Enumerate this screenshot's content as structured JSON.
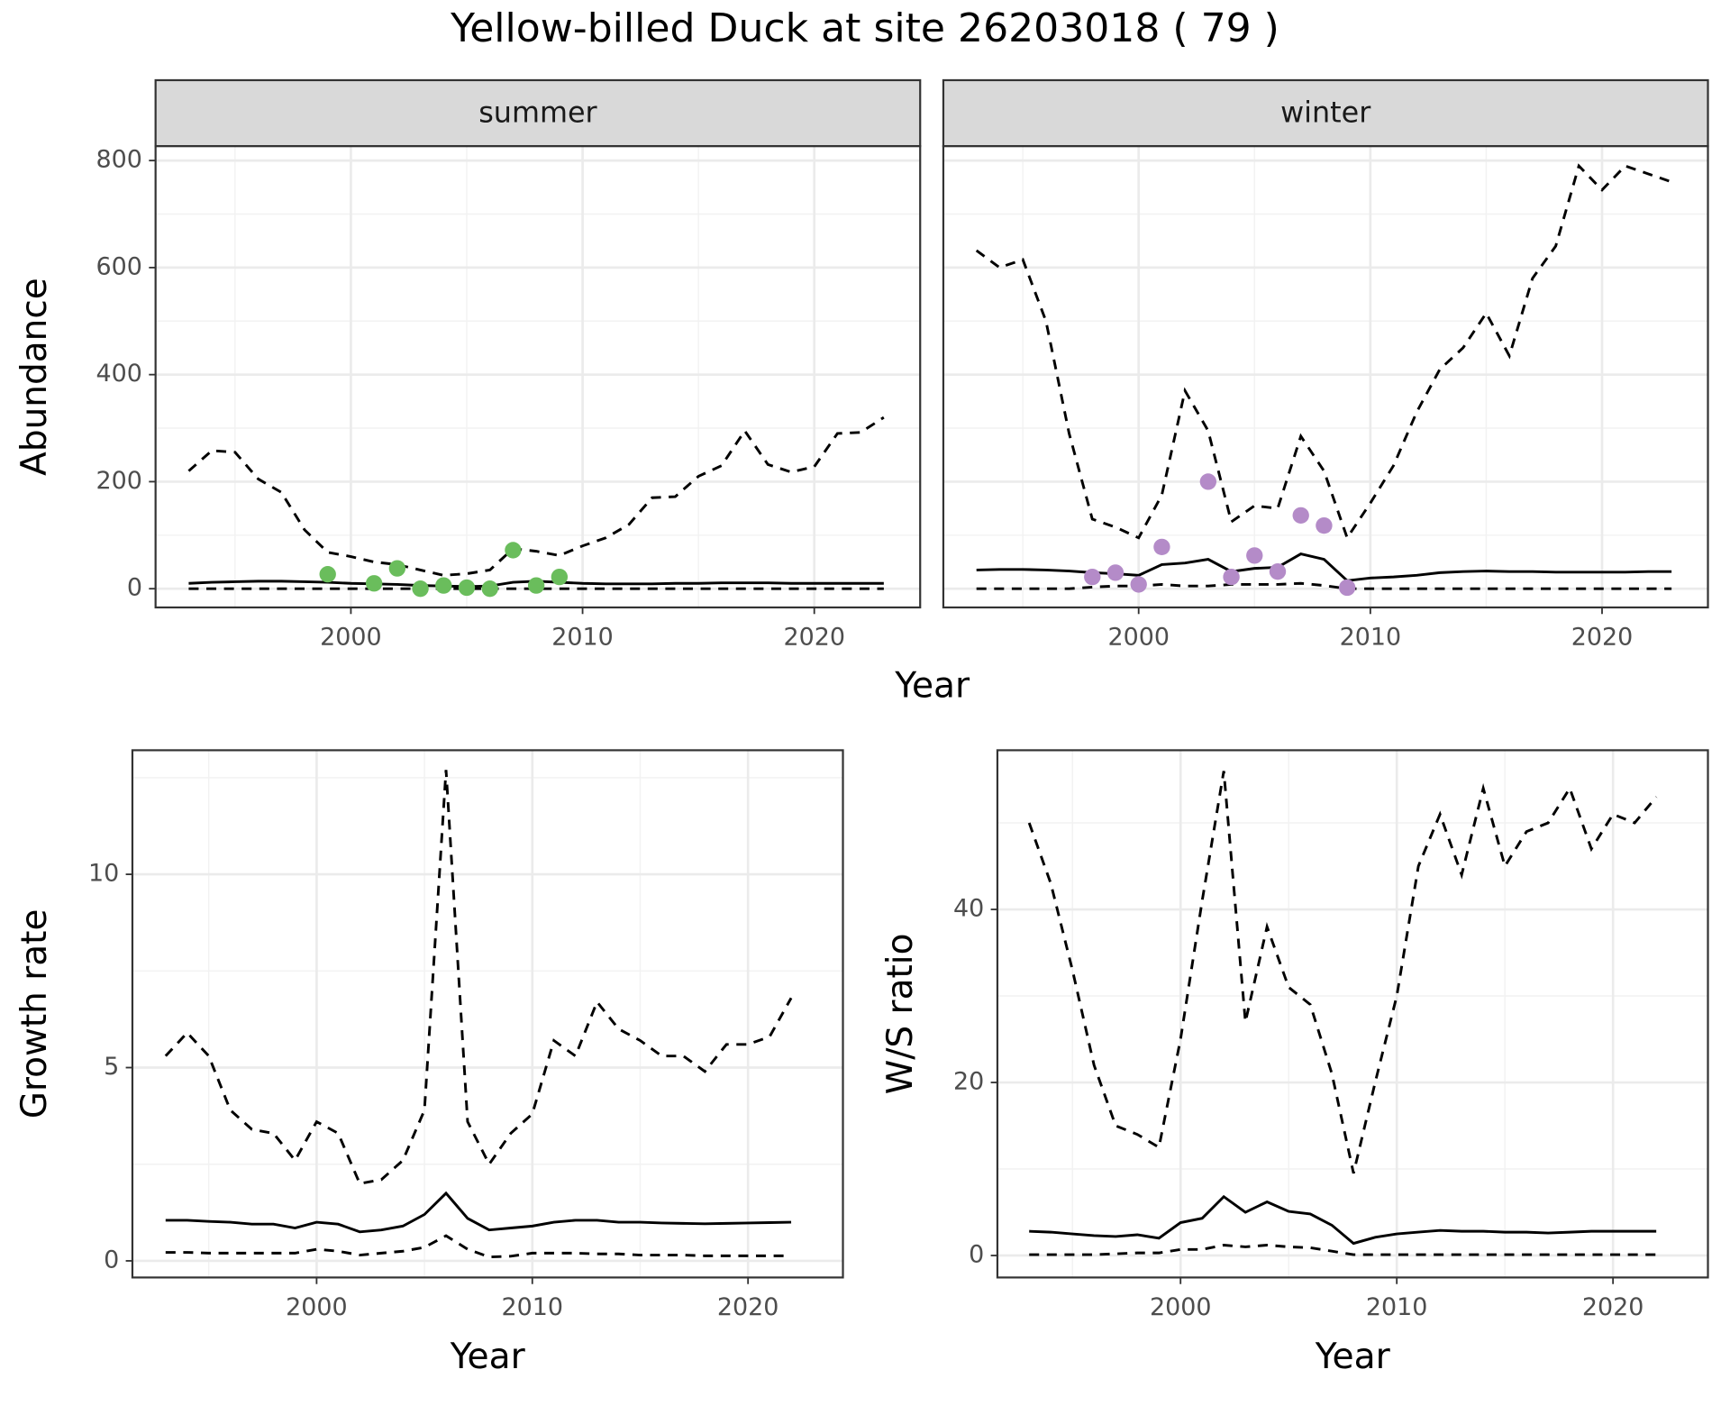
{
  "title": "Yellow-billed Duck at site 26203018 ( 79 )",
  "chart_data": [
    {
      "type": "line",
      "strip": "summer",
      "xlabel": "Year",
      "ylabel": "Abundance",
      "xlim": [
        1991.57,
        2024.57
      ],
      "ylim": [
        -35,
        827
      ],
      "xticks": [
        2000,
        2010,
        2020
      ],
      "yticks": [
        0,
        200,
        400,
        600,
        800
      ],
      "y_tick_labels": true,
      "grid": true,
      "x": [
        1993,
        1994,
        1995,
        1996,
        1997,
        1998,
        1999,
        2000,
        2001,
        2002,
        2003,
        2004,
        2005,
        2006,
        2007,
        2008,
        2009,
        2010,
        2011,
        2012,
        2013,
        2014,
        2015,
        2016,
        2017,
        2018,
        2019,
        2020,
        2021,
        2022,
        2023
      ],
      "series": [
        {
          "color": "#000000",
          "dash": true,
          "values": [
            220,
            258,
            255,
            205,
            180,
            110,
            68,
            60,
            50,
            45,
            35,
            25,
            28,
            35,
            75,
            70,
            62,
            80,
            95,
            120,
            170,
            172,
            210,
            230,
            295,
            232,
            218,
            228,
            290,
            292,
            320
          ]
        },
        {
          "color": "#000000",
          "dash": false,
          "values": [
            10,
            12,
            13,
            14,
            14,
            13,
            12,
            10,
            9,
            8,
            6,
            5,
            4,
            5,
            12,
            14,
            12,
            10,
            9,
            9,
            9,
            10,
            10,
            11,
            11,
            11,
            10,
            10,
            10,
            10,
            10
          ]
        },
        {
          "color": "#000000",
          "dash": true,
          "values": [
            0,
            0,
            0,
            0,
            0,
            0,
            0,
            0,
            0,
            0,
            0,
            0,
            0,
            0,
            0,
            0,
            0,
            0,
            0,
            0,
            0,
            0,
            0,
            0,
            0,
            0,
            0,
            0,
            0,
            0,
            0
          ]
        }
      ],
      "points": {
        "type": "scatter",
        "color": "#6abd5c",
        "x": [
          1999,
          2001,
          2002,
          2003,
          2004,
          2005,
          2006,
          2007,
          2008,
          2009
        ],
        "values": [
          27,
          10,
          38,
          0,
          6,
          2,
          0,
          72,
          6,
          22
        ]
      }
    },
    {
      "type": "line",
      "strip": "winter",
      "xlim": [
        1991.57,
        2024.57
      ],
      "ylim": [
        -35,
        827
      ],
      "xticks": [
        2000,
        2010,
        2020
      ],
      "yticks": [
        0,
        200,
        400,
        600,
        800
      ],
      "y_tick_labels": false,
      "grid": true,
      "x": [
        1993,
        1994,
        1995,
        1996,
        1997,
        1998,
        1999,
        2000,
        2001,
        2002,
        2003,
        2004,
        2005,
        2006,
        2007,
        2008,
        2009,
        2010,
        2011,
        2012,
        2013,
        2014,
        2015,
        2016,
        2017,
        2018,
        2019,
        2020,
        2021,
        2022,
        2023
      ],
      "series": [
        {
          "color": "#000000",
          "dash": true,
          "values": [
            632,
            600,
            615,
            500,
            290,
            130,
            115,
            95,
            175,
            370,
            295,
            125,
            155,
            150,
            285,
            220,
            95,
            160,
            230,
            330,
            410,
            450,
            515,
            435,
            580,
            640,
            790,
            745,
            790,
            775,
            760
          ]
        },
        {
          "color": "#000000",
          "dash": false,
          "values": [
            35,
            36,
            36,
            35,
            33,
            30,
            28,
            25,
            45,
            48,
            55,
            32,
            38,
            40,
            65,
            55,
            15,
            20,
            22,
            25,
            30,
            32,
            33,
            32,
            32,
            31,
            31,
            31,
            31,
            32,
            32
          ]
        },
        {
          "color": "#000000",
          "dash": true,
          "values": [
            0,
            0,
            0,
            0,
            0,
            3,
            5,
            5,
            8,
            5,
            5,
            8,
            8,
            8,
            10,
            6,
            0,
            0,
            0,
            0,
            0,
            0,
            0,
            0,
            0,
            0,
            0,
            0,
            0,
            0,
            0
          ]
        }
      ],
      "points": {
        "type": "scatter",
        "color": "#b48bc8",
        "x": [
          1998,
          1999,
          2000,
          2001,
          2003,
          2004,
          2005,
          2006,
          2007,
          2008,
          2009
        ],
        "values": [
          22,
          30,
          8,
          78,
          200,
          22,
          62,
          32,
          137,
          118,
          2
        ]
      }
    },
    {
      "type": "line",
      "xlabel": "Year",
      "ylabel": "Growth rate",
      "xlim": [
        1991.46,
        2024.4
      ],
      "ylim": [
        -0.43,
        13.21
      ],
      "xticks": [
        2000,
        2010,
        2020
      ],
      "yticks": [
        0,
        5,
        10
      ],
      "y_tick_labels": true,
      "grid": true,
      "x": [
        1993,
        1994,
        1995,
        1996,
        1997,
        1998,
        1999,
        2000,
        2001,
        2002,
        2003,
        2004,
        2005,
        2006,
        2007,
        2008,
        2009,
        2010,
        2011,
        2012,
        2013,
        2014,
        2015,
        2016,
        2017,
        2018,
        2019,
        2020,
        2021,
        2022
      ],
      "series": [
        {
          "color": "#000000",
          "dash": true,
          "values": [
            5.3,
            5.9,
            5.3,
            3.9,
            3.4,
            3.3,
            2.6,
            3.6,
            3.3,
            2.0,
            2.1,
            2.6,
            3.9,
            12.7,
            3.6,
            2.5,
            3.3,
            3.8,
            5.7,
            5.3,
            6.7,
            6.0,
            5.7,
            5.3,
            5.3,
            4.9,
            5.6,
            5.6,
            5.8,
            6.8
          ]
        },
        {
          "color": "#000000",
          "dash": false,
          "values": [
            1.05,
            1.05,
            1.02,
            1.0,
            0.95,
            0.95,
            0.85,
            1.0,
            0.95,
            0.75,
            0.8,
            0.9,
            1.2,
            1.75,
            1.1,
            0.8,
            0.85,
            0.9,
            1.0,
            1.05,
            1.05,
            1.0,
            1.0,
            0.98,
            0.97,
            0.96,
            0.97,
            0.98,
            0.99,
            1.0
          ]
        },
        {
          "color": "#000000",
          "dash": true,
          "values": [
            0.22,
            0.22,
            0.2,
            0.2,
            0.2,
            0.2,
            0.2,
            0.3,
            0.25,
            0.15,
            0.2,
            0.25,
            0.35,
            0.65,
            0.3,
            0.1,
            0.12,
            0.2,
            0.2,
            0.2,
            0.18,
            0.18,
            0.15,
            0.15,
            0.15,
            0.13,
            0.13,
            0.13,
            0.13,
            0.13
          ]
        }
      ]
    },
    {
      "type": "line",
      "xlabel": "Year",
      "ylabel": "W/S ratio",
      "xlim": [
        1991.53,
        2024.39
      ],
      "ylim": [
        -2.54,
        58.4
      ],
      "xticks": [
        2000,
        2010,
        2020
      ],
      "yticks": [
        0,
        20,
        40
      ],
      "y_tick_labels": true,
      "grid": true,
      "x": [
        1993,
        1994,
        1995,
        1996,
        1997,
        1998,
        1999,
        2000,
        2001,
        2002,
        2003,
        2004,
        2005,
        2006,
        2007,
        2008,
        2009,
        2010,
        2011,
        2012,
        2013,
        2014,
        2015,
        2016,
        2017,
        2018,
        2019,
        2020,
        2021,
        2022
      ],
      "series": [
        {
          "color": "#000000",
          "dash": true,
          "values": [
            50,
            43,
            33,
            22,
            15,
            14,
            12.5,
            25,
            41,
            56,
            27,
            38,
            31,
            29,
            21,
            9.5,
            20,
            30,
            45,
            51,
            44,
            54,
            45,
            49,
            50,
            54,
            47,
            51,
            50,
            53
          ]
        },
        {
          "color": "#000000",
          "dash": false,
          "values": [
            2.8,
            2.7,
            2.5,
            2.3,
            2.2,
            2.4,
            2.0,
            3.8,
            4.3,
            6.8,
            5.0,
            6.2,
            5.1,
            4.8,
            3.5,
            1.4,
            2.1,
            2.5,
            2.7,
            2.9,
            2.8,
            2.8,
            2.7,
            2.7,
            2.6,
            2.7,
            2.8,
            2.8,
            2.8,
            2.8
          ]
        },
        {
          "color": "#000000",
          "dash": true,
          "values": [
            0.1,
            0.1,
            0.1,
            0.1,
            0.2,
            0.3,
            0.3,
            0.7,
            0.7,
            1.2,
            1.0,
            1.2,
            1.0,
            0.9,
            0.5,
            0.1,
            0.1,
            0.1,
            0.1,
            0.1,
            0.1,
            0.1,
            0.1,
            0.1,
            0.1,
            0.1,
            0.1,
            0.1,
            0.1,
            0.1
          ]
        }
      ]
    }
  ]
}
